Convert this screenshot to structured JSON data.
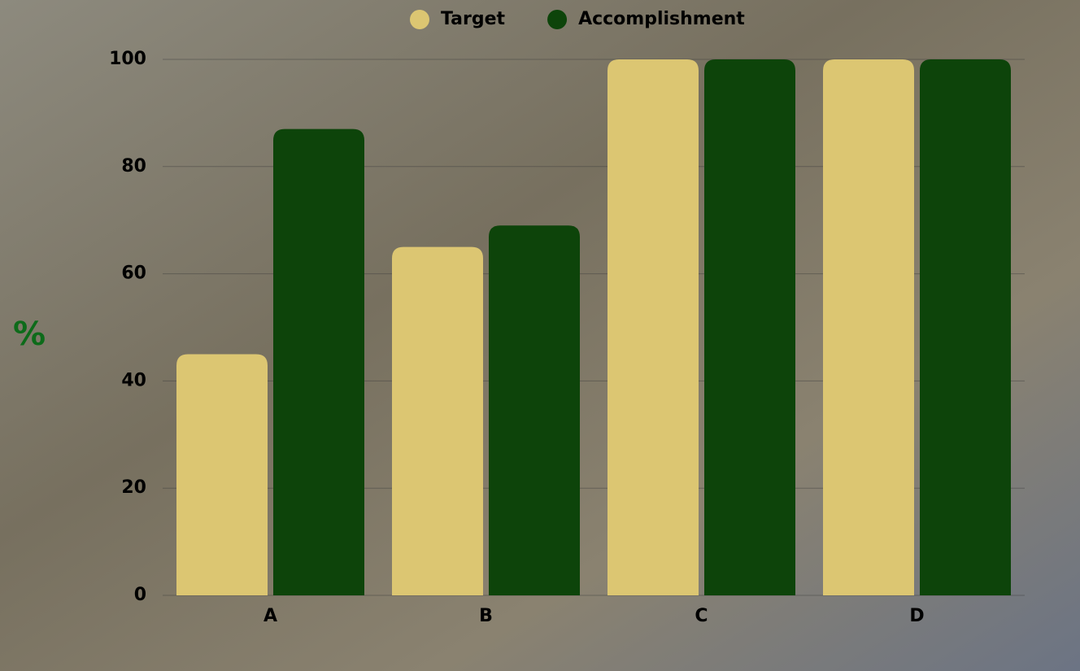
{
  "chart_data": {
    "type": "bar",
    "y_label": "%",
    "categories": [
      "A",
      "B",
      "C",
      "D"
    ],
    "series": [
      {
        "name": "Target",
        "color": "#dcc672",
        "values": [
          45,
          65,
          100,
          100
        ]
      },
      {
        "name": "Accomplishment",
        "color": "#0d440a",
        "values": [
          87,
          69,
          100,
          100
        ]
      }
    ],
    "ylim": [
      0,
      100
    ],
    "yticks": [
      0,
      20,
      40,
      60,
      80,
      100
    ],
    "grid": true
  }
}
